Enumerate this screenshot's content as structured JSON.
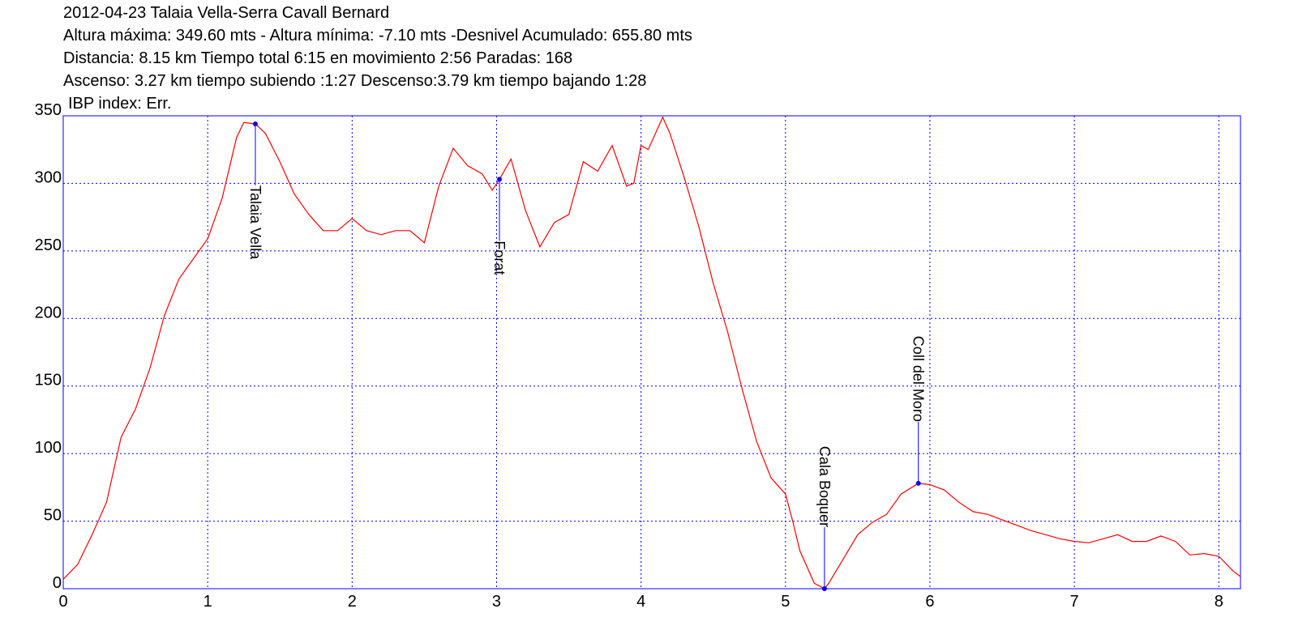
{
  "chart_data": {
    "type": "line",
    "title": "2012-04-23 Talaia Vella-Serra Cavall Bernard",
    "subtitle": [
      "Altura máxima: 349.60 mts - Altura mínima: -7.10 mts -Desnivel Acumulado: 655.80 mts",
      "Distancia: 8.15 km  Tiempo total 6:15  en movimiento 2:56 Paradas: 168",
      "Ascenso: 3.27 km  tiempo subiendo :1:27  Descenso:3.79 km tiempo bajando 1:28",
      "IBP index: Err."
    ],
    "color": "#ff0000",
    "marker_color": "#0000ff",
    "grid": true,
    "xlim": [
      0,
      8.15
    ],
    "ylim": [
      0,
      350
    ],
    "xticks": [
      0,
      1,
      2,
      3,
      4,
      5,
      6,
      7,
      8
    ],
    "yticks": [
      0,
      50,
      100,
      150,
      200,
      250,
      300,
      350
    ],
    "x": [
      0,
      0.1,
      0.2,
      0.3,
      0.4,
      0.5,
      0.6,
      0.7,
      0.8,
      0.9,
      1.0,
      1.1,
      1.2,
      1.25,
      1.33,
      1.4,
      1.5,
      1.6,
      1.7,
      1.8,
      1.9,
      2.0,
      2.1,
      2.2,
      2.3,
      2.4,
      2.5,
      2.6,
      2.7,
      2.8,
      2.9,
      2.97,
      3.02,
      3.1,
      3.2,
      3.3,
      3.4,
      3.5,
      3.6,
      3.7,
      3.8,
      3.9,
      3.95,
      4.0,
      4.05,
      4.15,
      4.2,
      4.3,
      4.4,
      4.5,
      4.6,
      4.7,
      4.8,
      4.9,
      5.0,
      5.05,
      5.1,
      5.2,
      5.27,
      5.3,
      5.4,
      5.5,
      5.6,
      5.7,
      5.8,
      5.92,
      6.0,
      6.1,
      6.2,
      6.3,
      6.4,
      6.5,
      6.6,
      6.7,
      6.8,
      6.9,
      7.0,
      7.1,
      7.2,
      7.3,
      7.4,
      7.5,
      7.6,
      7.7,
      7.8,
      7.9,
      8.0,
      8.1,
      8.15
    ],
    "values": [
      7,
      18,
      40,
      64,
      112,
      133,
      163,
      202,
      229,
      244,
      259,
      289,
      334,
      345,
      344,
      337,
      316,
      292,
      277,
      265,
      265,
      274,
      265,
      262,
      265,
      265,
      256,
      298,
      326,
      313,
      307,
      295,
      303,
      318,
      280,
      253,
      271,
      277,
      316,
      309,
      328,
      298,
      300,
      328,
      325,
      349,
      337,
      304,
      268,
      226,
      190,
      148,
      109,
      82,
      70,
      50,
      28,
      4,
      0,
      4,
      22,
      40,
      49,
      55,
      70,
      78,
      77,
      73,
      64,
      57,
      55,
      51,
      47,
      43,
      40,
      37,
      35,
      34,
      37,
      40,
      35,
      35,
      39,
      35,
      25,
      26,
      24,
      13,
      9
    ],
    "annotations": [
      {
        "text": "Talaia Vella",
        "x": 1.33,
        "y": 344
      },
      {
        "text": "Forat",
        "x": 3.02,
        "y": 303
      },
      {
        "text": "Cala Boquer",
        "x": 5.27,
        "y": 0
      },
      {
        "text": "Coll del Moro",
        "x": 5.92,
        "y": 78
      }
    ]
  }
}
